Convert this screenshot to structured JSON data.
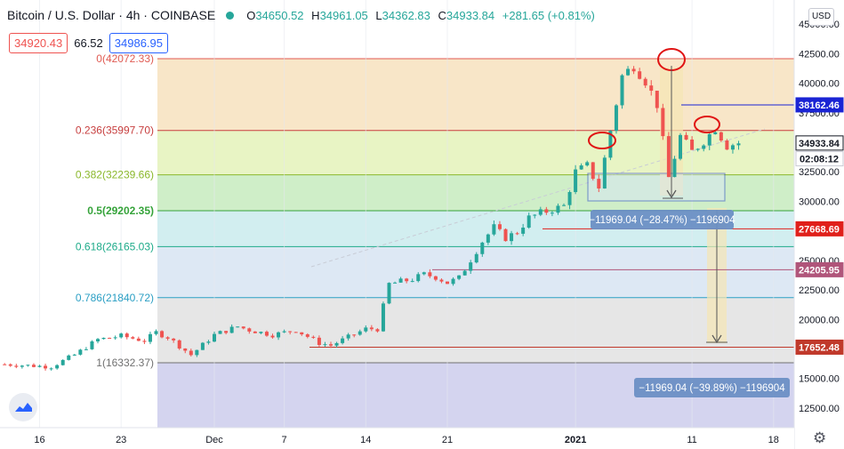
{
  "header": {
    "title": "Bitcoin / U.S. Dollar · 4h · COINBASE",
    "open_label": "O",
    "open": "34650.52",
    "high_label": "H",
    "high": "34961.05",
    "low_label": "L",
    "low": "34362.83",
    "close_label": "C",
    "close": "34933.84",
    "change": "+281.65 (+0.81%)",
    "status_color": "#26a69a"
  },
  "trade": {
    "sell": "34920.43",
    "spread": "66.52",
    "buy": "34986.95"
  },
  "currency_button": "USD",
  "icons": {
    "logo": "tradingview-logo-icon",
    "settings": "gear-icon",
    "status": "market-open-dot-icon"
  },
  "chart_data": {
    "type": "line",
    "title": "Bitcoin / U.S. Dollar · 4h · COINBASE",
    "ylim": [
      10000,
      45000
    ],
    "y_ticks": [
      "45000.00",
      "42500.00",
      "40000.00",
      "37500.00",
      "32500.00",
      "30000.00",
      "25000.00",
      "22500.00",
      "20000.00",
      "15000.00",
      "12500.00"
    ],
    "x_ticks": [
      "16",
      "23",
      "Dec",
      "7",
      "14",
      "21",
      "2021",
      "11",
      "18"
    ],
    "x_tick_days": [
      -15,
      -8,
      0,
      6,
      13,
      20,
      31,
      41,
      48
    ],
    "price_path_days": [
      -18,
      -14,
      -12,
      -10,
      -8,
      -6,
      -5,
      -4,
      -2,
      0,
      2,
      3,
      5,
      7,
      9,
      10,
      13,
      14,
      15,
      17,
      18,
      19,
      20,
      21,
      23,
      24,
      25,
      26,
      27,
      28,
      30,
      31,
      32,
      33,
      34,
      35,
      36,
      37,
      38,
      39,
      40,
      41,
      42,
      43,
      44,
      45
    ],
    "price_path_values": [
      16200,
      16000,
      17000,
      18300,
      18600,
      18200,
      18900,
      18500,
      17000,
      18700,
      19400,
      19100,
      18700,
      19100,
      18000,
      17800,
      19200,
      19200,
      23000,
      23400,
      23800,
      23600,
      23100,
      23500,
      26600,
      27800,
      26900,
      27400,
      28600,
      29000,
      29600,
      32500,
      33000,
      31200,
      36000,
      40600,
      41500,
      40200,
      38200,
      32000,
      35500,
      34200,
      35100,
      36200,
      34700,
      34933.84
    ],
    "fib_levels": [
      {
        "label": "0(42072.33)",
        "value": 42072.33,
        "color": "#e05a52"
      },
      {
        "label": "0.236(35997.70)",
        "value": 35997.7,
        "color": "#c73e3e"
      },
      {
        "label": "0.382(32239.66)",
        "value": 32239.66,
        "color": "#8bb82c"
      },
      {
        "label": "0.5(29202.35)",
        "value": 29202.35,
        "color": "#35a33a"
      },
      {
        "label": "0.618(26165.03)",
        "value": 26165.03,
        "color": "#1eab8a"
      },
      {
        "label": "0.786(21840.72)",
        "value": 21840.72,
        "color": "#2b9fc4"
      },
      {
        "label": "1(16332.37)",
        "value": 16332.37,
        "color": "#707070"
      }
    ],
    "price_labels": [
      {
        "text": "38162.46",
        "value": 38162.46,
        "color": "#1a24d4"
      },
      {
        "text": "34933.84",
        "value": 34933.84,
        "color": "#ffffff",
        "fg": "#131722",
        "border": "#131722"
      },
      {
        "text": "02:08:12",
        "value": 33600,
        "color": "#ffffff",
        "fg": "#131722",
        "border": "#c8cad3"
      },
      {
        "text": "27668.69",
        "value": 27668.69,
        "color": "#e0201b"
      },
      {
        "text": "24205.95",
        "value": 24205.95,
        "color": "#b0557a"
      },
      {
        "text": "17652.48",
        "value": 17652.48,
        "color": "#c0392b"
      }
    ],
    "measurements": [
      {
        "text": "−11969.04 (−28.47%) −1196904",
        "start_value": 42072.33,
        "end_value": 30100
      },
      {
        "text": "−11969.04 (−39.89%) −1196904",
        "start_value": 29620,
        "end_value": 17652.48
      }
    ]
  }
}
